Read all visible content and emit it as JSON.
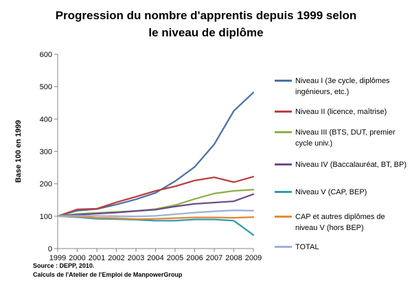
{
  "title_lines": [
    "Progression du nombre d'apprentis depuis 1999 selon",
    "le niveau de diplôme"
  ],
  "source_lines": [
    "Source : DEPP, 2010.",
    "Calculs de l'Atelier de l'Emploi de ManpowerGroup"
  ],
  "chart_data": {
    "type": "line",
    "title": "Progression du nombre d'apprentis depuis 1999 selon le niveau de diplôme",
    "xlabel": "",
    "ylabel": "Base 100 en 1999",
    "ylim": [
      0,
      600
    ],
    "yticks": [
      0,
      100,
      200,
      300,
      400,
      500,
      600
    ],
    "categories": [
      "1999",
      "2000",
      "2001",
      "2002",
      "2003",
      "2004",
      "2005",
      "2006",
      "2007",
      "2008",
      "2009"
    ],
    "grid": false,
    "legend_position": "right",
    "series": [
      {
        "name": "Niveau I (3e cycle, diplômes ingénieurs, etc.)",
        "color": "#4a72a8",
        "values": [
          100,
          117,
          122,
          136,
          152,
          172,
          208,
          252,
          322,
          425,
          482
        ]
      },
      {
        "name": "Niveau II (licence, maîtrise)",
        "color": "#b9413f",
        "values": [
          100,
          121,
          123,
          143,
          160,
          178,
          192,
          210,
          220,
          205,
          222
        ]
      },
      {
        "name": "Niveau III (BTS, DUT, premier cycle univ.)",
        "color": "#8db045",
        "values": [
          100,
          107,
          110,
          113,
          116,
          122,
          134,
          153,
          170,
          178,
          182
        ]
      },
      {
        "name": "Niveau IV (Baccalauréat, BT, BP)",
        "color": "#6e4b8e",
        "values": [
          100,
          104,
          108,
          111,
          116,
          120,
          130,
          138,
          142,
          146,
          168
        ]
      },
      {
        "name": "Niveau V (CAP, BEP)",
        "color": "#2f9bb2",
        "values": [
          100,
          97,
          92,
          91,
          89,
          86,
          86,
          90,
          90,
          86,
          42
        ]
      },
      {
        "name": "CAP et autres diplômes de niveau V (hors BEP)",
        "color": "#e48a34",
        "values": [
          100,
          99,
          95,
          94,
          91,
          92,
          94,
          96,
          96,
          95,
          97
        ]
      },
      {
        "name": "TOTAL",
        "color": "#99b3d9",
        "values": [
          100,
          101,
          101,
          100,
          99,
          101,
          106,
          111,
          115,
          118,
          117
        ]
      }
    ]
  }
}
